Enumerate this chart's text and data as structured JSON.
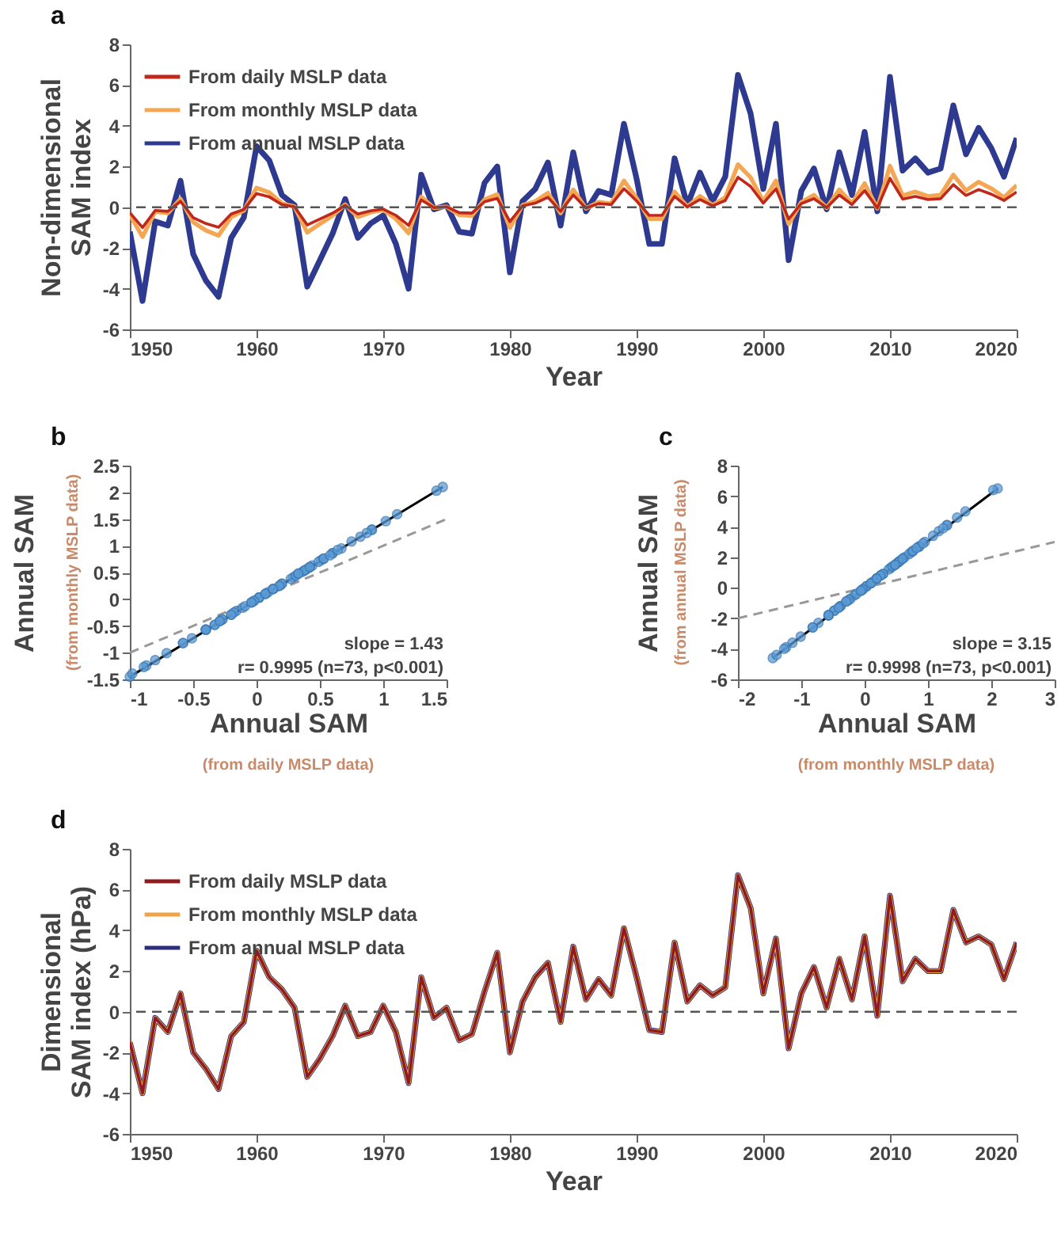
{
  "chart_data": [
    {
      "type": "line",
      "title": "a",
      "xlabel": "Year",
      "ylabel": "Non-dimensional\nSAM index",
      "xlim": [
        1950,
        2020
      ],
      "xticks": [
        1950,
        1960,
        1970,
        1980,
        1990,
        2000,
        2010,
        2020
      ],
      "ylim": [
        -6,
        8
      ],
      "yticks": [
        -6,
        -4,
        -2,
        0,
        2,
        4,
        6,
        8
      ],
      "legend": "top left",
      "ref_lines": [
        {
          "axis": "y",
          "value": 0,
          "color": "#555555",
          "line_style": "dashed"
        }
      ],
      "x": [
        1950,
        1951,
        1952,
        1953,
        1954,
        1955,
        1956,
        1957,
        1958,
        1959,
        1960,
        1961,
        1962,
        1963,
        1964,
        1965,
        1966,
        1967,
        1968,
        1969,
        1970,
        1971,
        1972,
        1973,
        1974,
        1975,
        1976,
        1977,
        1978,
        1979,
        1980,
        1981,
        1982,
        1983,
        1984,
        1985,
        1986,
        1987,
        1988,
        1989,
        1990,
        1991,
        1992,
        1993,
        1994,
        1995,
        1996,
        1997,
        1998,
        1999,
        2000,
        2001,
        2002,
        2003,
        2004,
        2005,
        2006,
        2007,
        2008,
        2009,
        2010,
        2011,
        2012,
        2013,
        2014,
        2015,
        2016,
        2017,
        2018,
        2019,
        2020
      ],
      "series": [
        {
          "name": "From daily MSLP data",
          "color": "#c0281c",
          "values": [
            -0.27,
            -1.0,
            -0.16,
            -0.2,
            0.29,
            -0.51,
            -0.8,
            -0.98,
            -0.33,
            -0.11,
            0.67,
            0.51,
            0.13,
            0.02,
            -0.87,
            -0.58,
            -0.29,
            0.09,
            -0.33,
            -0.18,
            -0.09,
            -0.4,
            -0.89,
            0.36,
            -0.02,
            0.02,
            -0.27,
            -0.29,
            0.27,
            0.44,
            -0.71,
            0.07,
            0.2,
            0.49,
            -0.2,
            0.6,
            -0.04,
            0.18,
            0.13,
            0.91,
            0.31,
            -0.4,
            -0.4,
            0.53,
            0.02,
            0.38,
            0.07,
            0.33,
            1.47,
            1.02,
            0.2,
            0.91,
            -0.58,
            0.18,
            0.42,
            -0.02,
            0.6,
            0.13,
            0.82,
            -0.04,
            1.42,
            0.4,
            0.53,
            0.38,
            0.42,
            1.11,
            0.58,
            0.87,
            0.64,
            0.33,
            0.75
          ]
        },
        {
          "name": "From monthly MSLP data",
          "color": "#f5a652",
          "values": [
            -0.38,
            -1.45,
            -0.22,
            -0.29,
            0.41,
            -0.73,
            -1.14,
            -1.39,
            -0.48,
            -0.16,
            0.95,
            0.73,
            0.19,
            0.03,
            -1.24,
            -0.82,
            -0.41,
            0.13,
            -0.48,
            -0.25,
            -0.13,
            -0.57,
            -1.27,
            0.51,
            -0.03,
            0.03,
            -0.38,
            -0.41,
            0.38,
            0.63,
            -1.01,
            0.1,
            0.29,
            0.7,
            -0.29,
            0.86,
            -0.06,
            0.25,
            0.19,
            1.3,
            0.44,
            -0.57,
            -0.57,
            0.76,
            0.03,
            0.54,
            0.1,
            0.48,
            2.1,
            1.46,
            0.29,
            1.3,
            -0.82,
            0.25,
            0.6,
            -0.03,
            0.86,
            0.19,
            1.17,
            -0.06,
            2.03,
            0.57,
            0.76,
            0.54,
            0.6,
            1.59,
            0.82,
            1.24,
            0.92,
            0.48,
            1.08
          ]
        },
        {
          "name": "From annual MSLP data",
          "color": "#2e3a8f",
          "values": [
            -1.2,
            -4.6,
            -0.7,
            -0.9,
            1.3,
            -2.3,
            -3.6,
            -4.4,
            -1.5,
            -0.5,
            3.0,
            2.3,
            0.6,
            0.1,
            -3.9,
            -2.6,
            -1.3,
            0.4,
            -1.5,
            -0.8,
            -0.4,
            -1.8,
            -4.0,
            1.6,
            -0.1,
            0.1,
            -1.2,
            -1.3,
            1.2,
            2.0,
            -3.2,
            0.3,
            0.9,
            2.2,
            -0.9,
            2.7,
            -0.2,
            0.8,
            0.6,
            4.1,
            1.4,
            -1.8,
            -1.8,
            2.4,
            0.1,
            1.7,
            0.3,
            1.5,
            6.5,
            4.6,
            0.9,
            4.1,
            -2.6,
            0.8,
            1.9,
            -0.1,
            2.7,
            0.6,
            3.7,
            -0.2,
            6.4,
            1.8,
            2.4,
            1.7,
            1.9,
            5.0,
            2.6,
            3.9,
            2.9,
            1.5,
            3.4
          ]
        }
      ]
    },
    {
      "type": "scatter",
      "title": "b",
      "xlabel": "Annual SAM",
      "ylabel": "Annual SAM",
      "xlim": [
        -1,
        1.5
      ],
      "xticks": [
        -1,
        -0.5,
        0,
        0.5,
        1,
        1.5
      ],
      "ylim": [
        -1.5,
        2.5
      ],
      "yticks": [
        -1.5,
        -1,
        -0.5,
        0,
        0.5,
        1,
        1.5,
        2,
        2.5
      ],
      "annotations": [
        "slope = 1.43",
        "r= 0.9995 (n=73, p<0.001)",
        "(from daily MSLP data)",
        "(from monthly MSLP data)"
      ],
      "series": [
        {
          "type": "line",
          "color": "#999999",
          "line_style": "dashed",
          "x": [
            -1,
            1.5
          ],
          "values": [
            -1,
            1.5
          ]
        },
        {
          "type": "line",
          "color": "#000000",
          "x": [
            -1,
            1.47
          ],
          "values": [
            -1.45,
            2.1
          ]
        },
        {
          "color": "#5b9bd5",
          "x": [
            -0.27,
            -1.0,
            -0.16,
            -0.2,
            0.29,
            -0.51,
            -0.8,
            -0.98,
            -0.33,
            -0.11,
            0.67,
            0.51,
            0.13,
            0.02,
            -0.87,
            -0.58,
            -0.29,
            0.09,
            -0.33,
            -0.18,
            -0.09,
            -0.4,
            -0.89,
            0.36,
            -0.02,
            0.02,
            -0.27,
            -0.29,
            0.27,
            0.44,
            -0.71,
            0.07,
            0.2,
            0.49,
            -0.2,
            0.6,
            -0.04,
            0.18,
            0.13,
            0.91,
            0.31,
            -0.4,
            -0.4,
            0.53,
            0.02,
            0.38,
            0.07,
            0.33,
            1.47,
            1.02,
            0.2,
            0.91,
            -0.58,
            0.18,
            0.42,
            -0.02,
            0.6,
            0.13,
            0.82,
            -0.04,
            1.42,
            0.4,
            0.53,
            0.38,
            0.42,
            1.11,
            0.58,
            0.87,
            0.64,
            0.33,
            0.75
          ],
          "values": [
            -0.38,
            -1.45,
            -0.22,
            -0.29,
            0.41,
            -0.73,
            -1.14,
            -1.39,
            -0.48,
            -0.16,
            0.95,
            0.73,
            0.19,
            0.03,
            -1.24,
            -0.82,
            -0.41,
            0.13,
            -0.48,
            -0.25,
            -0.13,
            -0.57,
            -1.27,
            0.51,
            -0.03,
            0.03,
            -0.38,
            -0.41,
            0.38,
            0.63,
            -1.01,
            0.1,
            0.29,
            0.7,
            -0.29,
            0.86,
            -0.06,
            0.25,
            0.19,
            1.3,
            0.44,
            -0.57,
            -0.57,
            0.76,
            0.03,
            0.54,
            0.1,
            0.48,
            2.1,
            1.46,
            0.29,
            1.3,
            -0.82,
            0.25,
            0.6,
            -0.03,
            0.86,
            0.19,
            1.17,
            -0.06,
            2.03,
            0.57,
            0.76,
            0.54,
            0.6,
            1.59,
            0.82,
            1.24,
            0.92,
            0.48,
            1.08
          ]
        }
      ]
    },
    {
      "type": "scatter",
      "title": "c",
      "xlabel": "Annual SAM",
      "ylabel": "Annual SAM",
      "xlim": [
        -2,
        3
      ],
      "xticks": [
        -2,
        -1,
        0,
        1,
        2,
        3
      ],
      "ylim": [
        -6,
        8
      ],
      "yticks": [
        -6,
        -4,
        -2,
        0,
        2,
        4,
        6,
        8
      ],
      "annotations": [
        "slope = 3.15",
        "r= 0.9998 (n=73, p<0.001)",
        "(from monthly MSLP data)",
        "(from annual MSLP data)"
      ],
      "series": [
        {
          "type": "line",
          "color": "#999999",
          "line_style": "dashed",
          "x": [
            -2,
            3
          ],
          "values": [
            -2,
            3
          ]
        },
        {
          "type": "line",
          "color": "#000000",
          "x": [
            -1.45,
            2.1
          ],
          "values": [
            -4.6,
            6.5
          ]
        },
        {
          "color": "#5b9bd5",
          "x": [
            -0.38,
            -1.45,
            -0.22,
            -0.29,
            0.41,
            -0.73,
            -1.14,
            -1.39,
            -0.48,
            -0.16,
            0.95,
            0.73,
            0.19,
            0.03,
            -1.24,
            -0.82,
            -0.41,
            0.13,
            -0.48,
            -0.25,
            -0.13,
            -0.57,
            -1.27,
            0.51,
            -0.03,
            0.03,
            -0.38,
            -0.41,
            0.38,
            0.63,
            -1.01,
            0.1,
            0.29,
            0.7,
            -0.29,
            0.86,
            -0.06,
            0.25,
            0.19,
            1.3,
            0.44,
            -0.57,
            -0.57,
            0.76,
            0.03,
            0.54,
            0.1,
            0.48,
            2.1,
            1.46,
            0.29,
            1.3,
            -0.82,
            0.25,
            0.6,
            -0.03,
            0.86,
            0.19,
            1.17,
            -0.06,
            2.03,
            0.57,
            0.76,
            0.54,
            0.6,
            1.59,
            0.82,
            1.24,
            0.92,
            0.48,
            1.08
          ],
          "values": [
            -1.2,
            -4.6,
            -0.7,
            -0.9,
            1.3,
            -2.3,
            -3.6,
            -4.4,
            -1.5,
            -0.5,
            3.0,
            2.3,
            0.6,
            0.1,
            -3.9,
            -2.6,
            -1.3,
            0.4,
            -1.5,
            -0.8,
            -0.4,
            -1.8,
            -4.0,
            1.6,
            -0.1,
            0.1,
            -1.2,
            -1.3,
            1.2,
            2.0,
            -3.2,
            0.3,
            0.9,
            2.2,
            -0.9,
            2.7,
            -0.2,
            0.8,
            0.6,
            4.1,
            1.4,
            -1.8,
            -1.8,
            2.4,
            0.1,
            1.7,
            0.3,
            1.5,
            6.5,
            4.6,
            0.9,
            4.1,
            -2.6,
            0.8,
            1.9,
            -0.1,
            2.7,
            0.6,
            3.7,
            -0.2,
            6.4,
            1.8,
            2.4,
            1.7,
            1.9,
            5.0,
            2.6,
            3.9,
            2.9,
            1.5,
            3.4
          ]
        }
      ]
    },
    {
      "type": "line",
      "title": "d",
      "xlabel": "Year",
      "ylabel": "Dimensional\nSAM index (hPa)",
      "xlim": [
        1950,
        2020
      ],
      "xticks": [
        1950,
        1960,
        1970,
        1980,
        1990,
        2000,
        2010,
        2020
      ],
      "ylim": [
        -6,
        8
      ],
      "yticks": [
        -6,
        -4,
        -2,
        0,
        2,
        4,
        6,
        8
      ],
      "legend": "top left",
      "ref_lines": [
        {
          "axis": "y",
          "value": 0,
          "color": "#555555",
          "line_style": "dashed"
        }
      ],
      "x": [
        1950,
        1951,
        1952,
        1953,
        1954,
        1955,
        1956,
        1957,
        1958,
        1959,
        1960,
        1961,
        1962,
        1963,
        1964,
        1965,
        1966,
        1967,
        1968,
        1969,
        1970,
        1971,
        1972,
        1973,
        1974,
        1975,
        1976,
        1977,
        1978,
        1979,
        1980,
        1981,
        1982,
        1983,
        1984,
        1985,
        1986,
        1987,
        1988,
        1989,
        1990,
        1991,
        1992,
        1993,
        1994,
        1995,
        1996,
        1997,
        1998,
        1999,
        2000,
        2001,
        2002,
        2003,
        2004,
        2005,
        2006,
        2007,
        2008,
        2009,
        2010,
        2011,
        2012,
        2013,
        2014,
        2015,
        2016,
        2017,
        2018,
        2019,
        2020
      ],
      "series": [
        {
          "name": "From daily MSLP data",
          "color": "#8e1b1f",
          "values": [
            -1.5,
            -4.0,
            -0.3,
            -1.0,
            0.9,
            -2.0,
            -2.8,
            -3.8,
            -1.2,
            -0.5,
            3.0,
            1.7,
            1.1,
            0.2,
            -3.2,
            -2.3,
            -1.2,
            0.3,
            -1.2,
            -1.0,
            0.3,
            -1.0,
            -3.5,
            1.7,
            -0.3,
            0.2,
            -1.4,
            -1.1,
            1.0,
            2.9,
            -2.0,
            0.5,
            1.7,
            2.4,
            -0.5,
            3.2,
            0.6,
            1.6,
            0.8,
            4.1,
            1.7,
            -0.9,
            -1.0,
            3.4,
            0.5,
            1.3,
            0.8,
            1.2,
            6.7,
            5.1,
            0.9,
            3.6,
            -1.8,
            0.9,
            2.2,
            0.2,
            2.6,
            0.6,
            3.7,
            -0.2,
            5.7,
            1.5,
            2.6,
            2.0,
            2.0,
            5.0,
            3.4,
            3.7,
            3.3,
            1.6,
            3.4
          ]
        },
        {
          "name": "From monthly MSLP data",
          "color": "#f0a448",
          "values": [
            -1.5,
            -4.0,
            -0.3,
            -1.0,
            0.9,
            -2.0,
            -2.8,
            -3.8,
            -1.2,
            -0.5,
            3.0,
            1.7,
            1.1,
            0.2,
            -3.2,
            -2.3,
            -1.2,
            0.3,
            -1.2,
            -1.0,
            0.3,
            -1.0,
            -3.5,
            1.7,
            -0.3,
            0.2,
            -1.4,
            -1.1,
            1.0,
            2.9,
            -2.0,
            0.5,
            1.7,
            2.4,
            -0.5,
            3.2,
            0.6,
            1.6,
            0.8,
            4.1,
            1.7,
            -0.9,
            -1.0,
            3.4,
            0.5,
            1.3,
            0.8,
            1.2,
            6.7,
            5.1,
            0.9,
            3.6,
            -1.8,
            0.9,
            2.2,
            0.2,
            2.6,
            0.6,
            3.7,
            -0.2,
            5.7,
            1.5,
            2.6,
            2.0,
            2.0,
            5.0,
            3.4,
            3.7,
            3.3,
            1.6,
            3.4
          ]
        },
        {
          "name": "From annual MSLP data",
          "color": "#2b2f7a",
          "values": [
            -1.5,
            -4.0,
            -0.3,
            -1.0,
            0.9,
            -2.0,
            -2.8,
            -3.8,
            -1.2,
            -0.5,
            3.0,
            1.7,
            1.1,
            0.2,
            -3.2,
            -2.3,
            -1.2,
            0.3,
            -1.2,
            -1.0,
            0.3,
            -1.0,
            -3.5,
            1.7,
            -0.3,
            0.2,
            -1.4,
            -1.1,
            1.0,
            2.9,
            -2.0,
            0.5,
            1.7,
            2.4,
            -0.5,
            3.2,
            0.6,
            1.6,
            0.8,
            4.1,
            1.7,
            -0.9,
            -1.0,
            3.4,
            0.5,
            1.3,
            0.8,
            1.2,
            6.7,
            5.1,
            0.9,
            3.6,
            -1.8,
            0.9,
            2.2,
            0.2,
            2.6,
            0.6,
            3.7,
            -0.2,
            5.7,
            1.5,
            2.6,
            2.0,
            2.0,
            5.0,
            3.4,
            3.7,
            3.3,
            1.6,
            3.4
          ]
        }
      ]
    }
  ]
}
